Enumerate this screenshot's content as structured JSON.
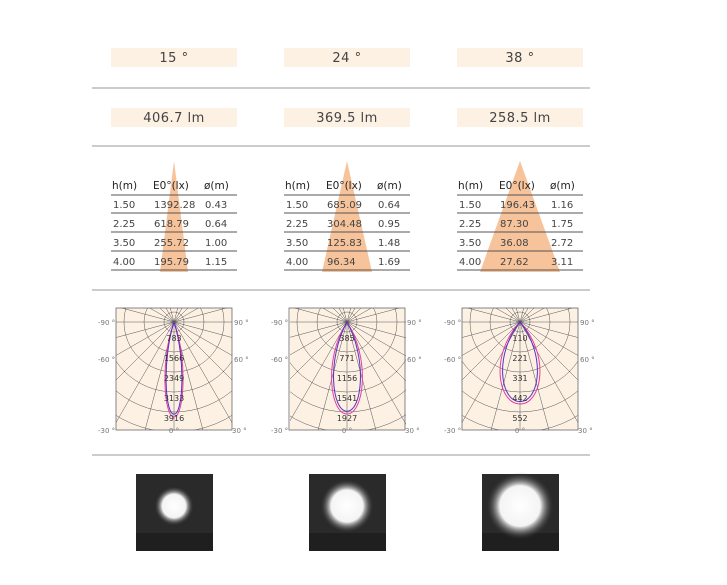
{
  "columns": [
    {
      "beam_angle": "15 °",
      "luminous_flux": "406.7 lm",
      "table": {
        "header": [
          "h(m)",
          "E0°(lx)",
          "ø(m)"
        ],
        "rows": [
          [
            "1.50",
            "1392.28",
            "0.43"
          ],
          [
            "2.25",
            "618.79",
            "0.64"
          ],
          [
            "3.50",
            "255.72",
            "1.00"
          ],
          [
            "4.00",
            "195.79",
            "1.15"
          ]
        ]
      },
      "polar": {
        "angle_labels": [
          "-90 °",
          "90 °",
          "-60 °",
          "60 °",
          "-30 °",
          "0 °",
          "30 °"
        ],
        "values": [
          "783",
          "1566",
          "2349",
          "3133",
          "3916"
        ]
      }
    },
    {
      "beam_angle": "24 °",
      "luminous_flux": "369.5 lm",
      "table": {
        "header": [
          "h(m)",
          "E0°(lx)",
          "ø(m)"
        ],
        "rows": [
          [
            "1.50",
            "685.09",
            "0.64"
          ],
          [
            "2.25",
            "304.48",
            "0.95"
          ],
          [
            "3.50",
            "125.83",
            "1.48"
          ],
          [
            "4.00",
            "96.34",
            "1.69"
          ]
        ]
      },
      "polar": {
        "angle_labels": [
          "-90 °",
          "90 °",
          "-60 °",
          "60 °",
          "-30 °",
          "0 °",
          "30 °"
        ],
        "values": [
          "385",
          "771",
          "1156",
          "1541",
          "1927"
        ]
      }
    },
    {
      "beam_angle": "38 °",
      "luminous_flux": "258.5 lm",
      "table": {
        "header": [
          "h(m)",
          "E0°(lx)",
          "ø(m)"
        ],
        "rows": [
          [
            "1.50",
            "196.43",
            "1.16"
          ],
          [
            "2.25",
            "87.30",
            "1.75"
          ],
          [
            "3.50",
            "36.08",
            "2.72"
          ],
          [
            "4.00",
            "27.62",
            "3.11"
          ]
        ]
      },
      "polar": {
        "angle_labels": [
          "-90 °",
          "90 °",
          "-60 °",
          "60 °",
          "-30 °",
          "0 °",
          "30 °"
        ],
        "values": [
          "110",
          "221",
          "331",
          "442",
          "552"
        ]
      }
    }
  ]
}
